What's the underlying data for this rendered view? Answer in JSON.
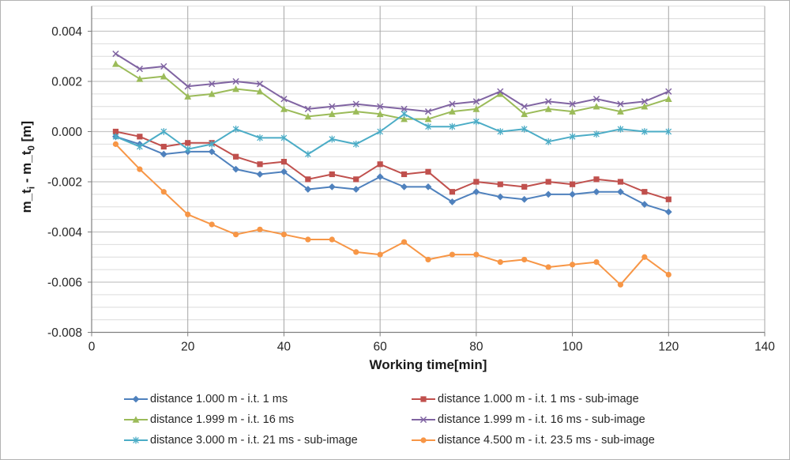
{
  "chart": {
    "x_title": "Working time[min]",
    "y_title": {
      "p1": "m_t",
      "sub_i": "i",
      "p2": " - m_t",
      "sub_0": "0",
      "p3": " [m]"
    }
  },
  "chart_data": {
    "type": "line",
    "title": "",
    "xlabel": "Working time[min]",
    "ylabel": "m_t_i - m_t_0 [m]",
    "xlim": [
      0,
      140
    ],
    "ylim": [
      -0.008,
      0.005
    ],
    "x_ticks": [
      0,
      20,
      40,
      60,
      80,
      100,
      120,
      140
    ],
    "y_ticks": [
      0.004,
      0.002,
      0.0,
      -0.002,
      -0.004,
      -0.006,
      -0.008
    ],
    "minor_grid_step": 0.0005,
    "grid": "both",
    "legend_position": "bottom-two-columns",
    "x": [
      5,
      10,
      15,
      20,
      25,
      30,
      35,
      40,
      45,
      50,
      55,
      60,
      65,
      70,
      75,
      80,
      85,
      90,
      95,
      100,
      105,
      110,
      115,
      120
    ],
    "series": [
      {
        "name": "distance 1.000 m - i.t. 1 ms",
        "color": "#4F81BD",
        "marker": "diamond",
        "values": [
          -0.0002,
          -0.0005,
          -0.0009,
          -0.0008,
          -0.0008,
          -0.0015,
          -0.0017,
          -0.0016,
          -0.0023,
          -0.0022,
          -0.0023,
          -0.0018,
          -0.0022,
          -0.0022,
          -0.0028,
          -0.0024,
          -0.0026,
          -0.0027,
          -0.0025,
          -0.0025,
          -0.0024,
          -0.0024,
          -0.0029,
          -0.0032
        ]
      },
      {
        "name": "distance 1.000 m - i.t. 1 ms - sub-image",
        "color": "#C0504D",
        "marker": "square",
        "values": [
          0.0,
          -0.0002,
          -0.0006,
          -0.00045,
          -0.00045,
          -0.001,
          -0.0013,
          -0.0012,
          -0.0019,
          -0.0017,
          -0.0019,
          -0.0013,
          -0.0017,
          -0.0016,
          -0.0024,
          -0.002,
          -0.0021,
          -0.0022,
          -0.002,
          -0.0021,
          -0.0019,
          -0.002,
          -0.0024,
          -0.0027
        ]
      },
      {
        "name": "distance 1.999 m - i.t. 16 ms",
        "color": "#9BBB59",
        "marker": "triangle",
        "values": [
          0.0027,
          0.0021,
          0.0022,
          0.0014,
          0.0015,
          0.0017,
          0.0016,
          0.0009,
          0.0006,
          0.0007,
          0.0008,
          0.0007,
          0.0005,
          0.0005,
          0.0008,
          0.0009,
          0.0015,
          0.0007,
          0.0009,
          0.0008,
          0.001,
          0.0008,
          0.001,
          0.0013
        ]
      },
      {
        "name": "distance 1.999 m - i.t. 16 ms - sub-image",
        "color": "#8064A2",
        "marker": "x",
        "values": [
          0.0031,
          0.0025,
          0.0026,
          0.0018,
          0.0019,
          0.002,
          0.0019,
          0.0013,
          0.0009,
          0.001,
          0.0011,
          0.001,
          0.0009,
          0.0008,
          0.0011,
          0.0012,
          0.0016,
          0.001,
          0.0012,
          0.0011,
          0.0013,
          0.0011,
          0.0012,
          0.0016
        ]
      },
      {
        "name": "distance 3.000 m - i.t. 21 ms - sub-image",
        "color": "#4BACC6",
        "marker": "asterisk",
        "values": [
          -0.0002,
          -0.0006,
          0.0,
          -0.0007,
          -0.0005,
          0.0001,
          -0.00025,
          -0.00025,
          -0.0009,
          -0.0003,
          -0.0005,
          0.0,
          0.0007,
          0.0002,
          0.0002,
          0.0004,
          0.0,
          0.0001,
          -0.0004,
          -0.0002,
          -0.0001,
          0.0001,
          0.0,
          0.0
        ]
      },
      {
        "name": "distance 4.500 m - i.t. 23.5 ms - sub-image",
        "color": "#F79646",
        "marker": "circle",
        "values": [
          -0.0005,
          -0.0015,
          -0.0024,
          -0.0033,
          -0.0037,
          -0.0041,
          -0.0039,
          -0.0041,
          -0.0043,
          -0.0043,
          -0.0048,
          -0.0049,
          -0.0044,
          -0.0051,
          -0.0049,
          -0.0049,
          -0.0052,
          -0.0051,
          -0.0054,
          -0.0053,
          -0.0052,
          -0.0061,
          -0.005,
          -0.0057
        ]
      }
    ],
    "colors": {
      "grid_minor": "#dcdcdc",
      "grid_major": "#c6c6c6",
      "grid_vertical": "#a6a6a6",
      "axis_line": "#7f7f7f",
      "tick_text": "#262626"
    }
  }
}
